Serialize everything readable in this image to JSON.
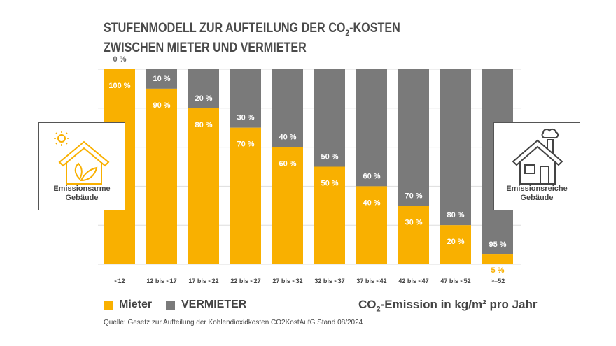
{
  "title_line1_pre": "STUFENMODELL ZUR AUFTEILUNG DER CO",
  "title_line1_sub": "2",
  "title_line1_post": "-KOSTEN",
  "title_line2": "ZWISCHEN MIETER UND VERMIETER",
  "left_box": {
    "label_line1": "Emissionsarme",
    "label_line2": "Gebäude",
    "icon": "house-leaf-sun-icon"
  },
  "right_box": {
    "label_line1": "Emissionsreiche",
    "label_line2": "Gebäude",
    "icon": "house-smoke-icon"
  },
  "legend": {
    "mieter": "Mieter",
    "vermieter": "VERMIETER"
  },
  "unit_pre": "CO",
  "unit_sub": "2",
  "unit_post": "-Emission in kg/m² pro Jahr",
  "source": "Quelle: Gesetz zur Aufteilung der Kohlendioxidkosten CO2KostAufG  Stand 08/2024",
  "colors": {
    "mieter": "#f9b000",
    "vermieter": "#7a7a7a"
  },
  "chart_data": {
    "type": "bar",
    "stacked": true,
    "categories": [
      "<12",
      "12 bis <17",
      "17 bis <22",
      "22 bis <27",
      "27 bis <32",
      "32 bis <37",
      "37 bis <42",
      "42 bis <47",
      "47 bis <52",
      ">=52"
    ],
    "series": [
      {
        "name": "Mieter",
        "values": [
          100,
          90,
          80,
          70,
          60,
          50,
          40,
          30,
          20,
          5
        ]
      },
      {
        "name": "VERMIETER",
        "values": [
          0,
          10,
          20,
          30,
          40,
          50,
          60,
          70,
          80,
          95
        ]
      }
    ],
    "ylim": [
      0,
      100
    ],
    "grid": true,
    "legend": "bottom-left"
  }
}
